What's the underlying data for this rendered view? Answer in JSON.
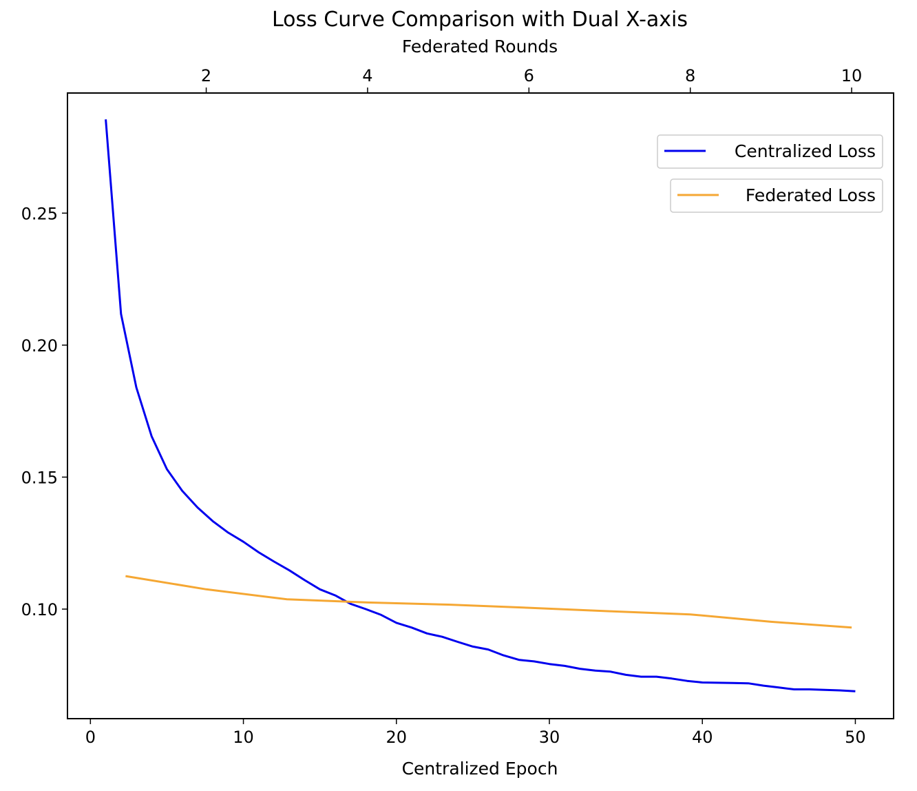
{
  "chart_data": {
    "type": "line",
    "title": "Loss Curve Comparison with Dual X-axis",
    "xlabel": "Centralized Epoch",
    "x2label": "Federated Rounds",
    "ylabel": "",
    "xlim": [
      -1.5,
      52.5
    ],
    "x2lim": [
      0.28,
      10.52
    ],
    "ylim": [
      0.0585,
      0.2955
    ],
    "xticks": [
      0,
      10,
      20,
      30,
      40,
      50
    ],
    "x2ticks": [
      2,
      4,
      6,
      8,
      10
    ],
    "yticks": [
      0.1,
      0.15,
      0.2,
      0.25
    ],
    "ytick_labels": [
      "0.10",
      "0.15",
      "0.20",
      "0.25"
    ],
    "grid": false,
    "legend_position": "top-right",
    "series": [
      {
        "name": "Centralized Loss",
        "axis": "bottom",
        "color": "#0000ee",
        "x": [
          1,
          2,
          3,
          4,
          5,
          6,
          7,
          8,
          9,
          10,
          11,
          12,
          13,
          14,
          15,
          16,
          17,
          18,
          19,
          20,
          21,
          22,
          23,
          24,
          25,
          26,
          27,
          28,
          29,
          30,
          31,
          32,
          33,
          34,
          35,
          36,
          37,
          38,
          39,
          40,
          41,
          42,
          43,
          44,
          45,
          46,
          47,
          48,
          49,
          50
        ],
        "values": [
          0.2855,
          0.2118,
          0.184,
          0.1655,
          0.153,
          0.1448,
          0.1385,
          0.1333,
          0.129,
          0.1255,
          0.1215,
          0.118,
          0.1147,
          0.111,
          0.1075,
          0.1052,
          0.102,
          0.1,
          0.0978,
          0.0948,
          0.093,
          0.0908,
          0.0895,
          0.0876,
          0.0858,
          0.0847,
          0.0825,
          0.0808,
          0.0802,
          0.0792,
          0.0785,
          0.0774,
          0.0767,
          0.0763,
          0.0751,
          0.0744,
          0.0744,
          0.0737,
          0.0728,
          0.0722,
          0.0721,
          0.072,
          0.0719,
          0.071,
          0.0703,
          0.0696,
          0.0696,
          0.0694,
          0.0692,
          0.0689
        ]
      },
      {
        "name": "Federated Loss",
        "axis": "top",
        "color": "#f5a733",
        "x": [
          1,
          2,
          3,
          4,
          5,
          6,
          7,
          8,
          9,
          10
        ],
        "values": [
          0.1125,
          0.1075,
          0.1037,
          0.1025,
          0.1017,
          0.1005,
          0.0992,
          0.098,
          0.0952,
          0.093
        ]
      }
    ]
  }
}
